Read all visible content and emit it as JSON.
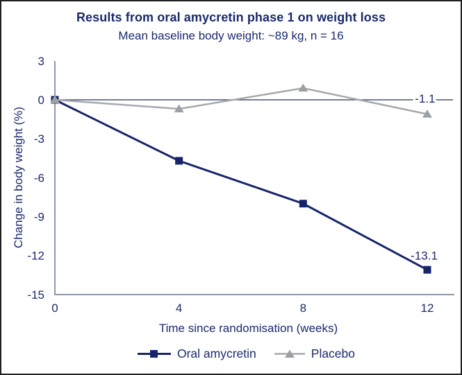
{
  "chart_data": {
    "type": "line",
    "title": "Results from oral amycretin phase 1 on weight loss",
    "subtitle": "Mean baseline body weight: ~89 kg, n = 16",
    "xlabel": "Time since randomisation (weeks)",
    "ylabel": "Change in body weight (%)",
    "x": [
      0,
      4,
      8,
      12
    ],
    "xticks": [
      0,
      4,
      8,
      12
    ],
    "yticks": [
      3,
      0,
      -3,
      -6,
      -9,
      -12,
      -15
    ],
    "xlim": [
      0,
      12.8
    ],
    "ylim": [
      -15,
      3
    ],
    "grid": false,
    "zero_line": true,
    "legend_position": "bottom",
    "series": [
      {
        "name": "Oral amycretin",
        "marker": "square",
        "color": "#16246b",
        "marker_color": "#16246b",
        "values": [
          0,
          -4.7,
          -8.0,
          -13.1
        ]
      },
      {
        "name": "Placebo",
        "marker": "triangle",
        "color": "#a6a9ac",
        "marker_color": "#9aa0a5",
        "values": [
          0,
          -0.7,
          0.9,
          -1.1
        ]
      }
    ],
    "annotations": [
      {
        "text": "-1.1",
        "x": 11.93,
        "y": 0.1
      },
      {
        "text": "-13.1",
        "x": 11.9,
        "y": -12.0
      }
    ],
    "colors": {
      "text": "#1a2a6c",
      "axis": "#8e97a8",
      "zero_line": "#44517e",
      "background": "#ffffff",
      "border": "#1f1f1f"
    }
  }
}
